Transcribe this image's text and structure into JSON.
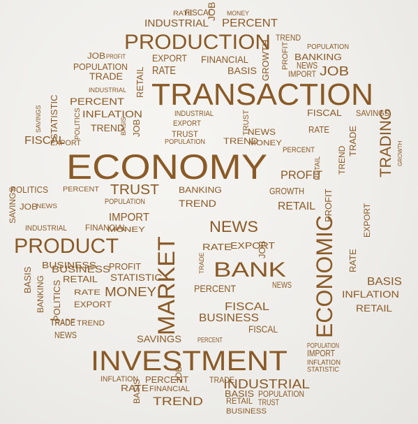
{
  "artwork": {
    "kind": "word-cloud",
    "text_color": "#8a5a26",
    "background_color": "#efeeeb"
  },
  "words": [
    "RATE",
    "FISCAL",
    "JOB",
    "MONEY",
    "INDUSTRIAL",
    "PERCENT",
    "PRODUCTION",
    "TREND",
    "POPULATION",
    "JOB",
    "PROFIT",
    "EXPORT",
    "FINANCIAL",
    "GROWTH",
    "PROFIT",
    "BANKING",
    "POPULATION",
    "RATE",
    "BASIS",
    "NEWS",
    "IMPORT",
    "JOB",
    "TRADE",
    "INDUSTRIAL",
    "RETAIL",
    "TRANSACTION",
    "PERCENT",
    "SAVINGS",
    "STATISTIC",
    "INFLATION",
    "POLITICS",
    "FISCAL",
    "SAVINGS",
    "TREND",
    "BASIS",
    "JOB",
    "TRUST",
    "INDUSTRIAL",
    "EXPORT",
    "TRUST",
    "POPULATION",
    "NEWS",
    "RATE",
    "FISCAL",
    "EXPORT",
    "TREND",
    "MONEY",
    "TRADE",
    "TRADING",
    "ECONOMY",
    "PERCENT",
    "PROFIT",
    "RETAIL",
    "TREND",
    "GROWTH",
    "POLITICS",
    "PERCENT",
    "TRUST",
    "BANKING",
    "GROWTH",
    "SAVINGS",
    "JOB",
    "NEWS",
    "POPULATION",
    "TREND",
    "RETAIL",
    "PRODUCT",
    "IMPORT",
    "MONEY",
    "NEWS",
    "EXPORT",
    "BUSINESS",
    "FINANCIAL",
    "INDUSTRIAL",
    "MARKET",
    "ECONOMIC",
    "PROFIT",
    "EXPORT",
    "RATE",
    "BANK",
    "TRADE",
    "JOB",
    "BUSINESS",
    "PROFIT",
    "RETAIL",
    "STATISTIC",
    "BASIS",
    "RATE",
    "BASIS",
    "MONEY",
    "PERCENT",
    "FISCAL",
    "NEWS",
    "INFLATION",
    "BANKING",
    "RATE",
    "EXPORT",
    "BUSINESS",
    "RETAIL",
    "TRADE",
    "TREND",
    "POLITICS",
    "FISCAL",
    "SAVINGS",
    "NEWS",
    "TRADE",
    "PERCENT",
    "POPULATION",
    "IMPORT",
    "INFLATION",
    "STATISTIC",
    "INVESTMENT",
    "INFLATION",
    "PERCENT",
    "JOB",
    "TRADE",
    "INDUSTRIAL",
    "RATE",
    "FINANCIAL",
    "BASIS",
    "POPULATION",
    "BASIS",
    "TREND",
    "RETAIL",
    "TRUST",
    "BUSINESS"
  ]
}
